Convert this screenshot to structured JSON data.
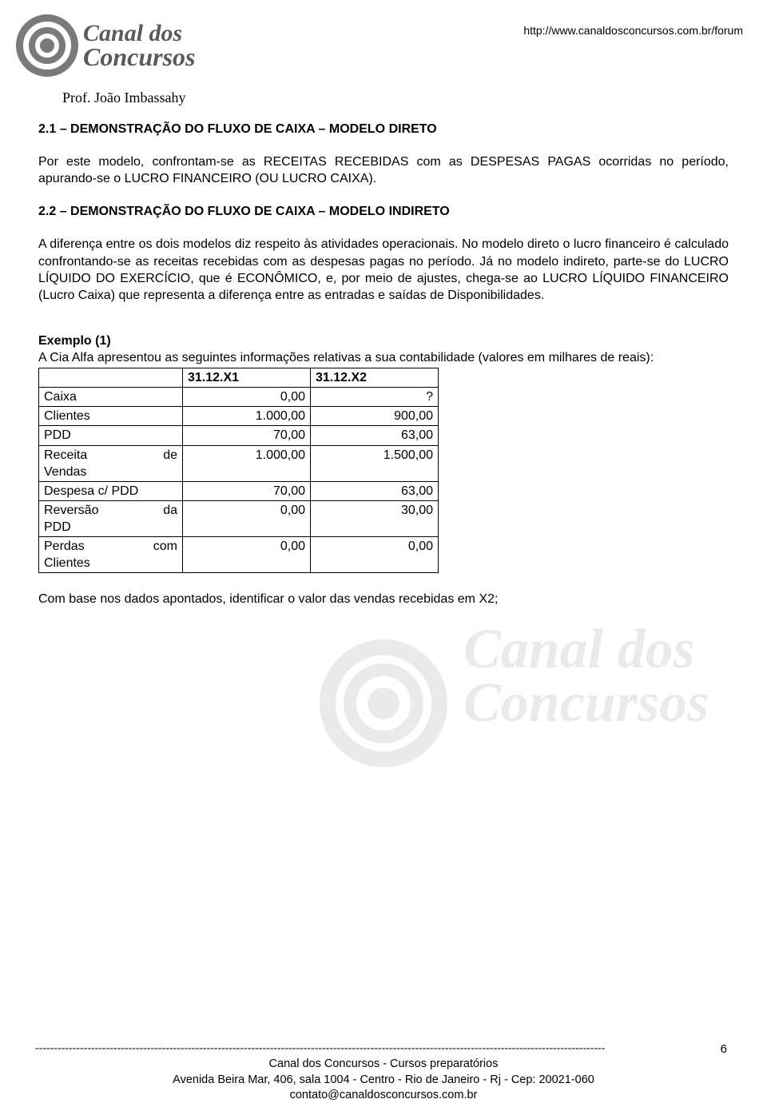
{
  "header": {
    "logo_line1": "Canal dos",
    "logo_line2": "Concursos",
    "url": "http://www.canaldosconcursos.com.br/forum"
  },
  "author": "Prof. João Imbassahy",
  "section1": {
    "heading": "2.1 – DEMONSTRAÇÃO DO FLUXO DE CAIXA – MODELO DIRETO",
    "para": "Por este modelo, confrontam-se as RECEITAS RECEBIDAS com as DESPESAS PAGAS ocorridas no período, apurando-se o LUCRO FINANCEIRO (OU LUCRO CAIXA)."
  },
  "section2": {
    "heading": "2.2 – DEMONSTRAÇÃO DO FLUXO DE CAIXA – MODELO INDIRETO",
    "para": "A diferença entre os dois modelos diz respeito às atividades operacionais. No modelo direto o lucro financeiro é calculado confrontando-se as receitas recebidas com as despesas pagas no período. Já no modelo indireto, parte-se do LUCRO LÍQUIDO  DO EXERCÍCIO, que é ECONÔMICO, e, por meio de ajustes, chega-se ao LUCRO LÍQUIDO FINANCEIRO (Lucro Caixa) que representa a diferença entre as entradas e saídas de Disponibilidades."
  },
  "example": {
    "title": "Exemplo (1)",
    "lead": "A Cia Alfa apresentou as seguintes informações relativas a sua contabilidade (valores em milhares de reais):",
    "note": "Com base nos dados apontados, identificar o valor das vendas recebidas em X2;"
  },
  "table": {
    "headers": [
      "",
      "31.12.X1",
      "31.12.X2"
    ],
    "rows": [
      {
        "label": "Caixa",
        "c1": "0,00",
        "c2": "?"
      },
      {
        "label": "Clientes",
        "c1": "1.000,00",
        "c2": "900,00"
      },
      {
        "label": "PDD",
        "c1": "70,00",
        "c2": "63,00"
      },
      {
        "label_a": "Receita",
        "label_b": "de",
        "label2": "Vendas",
        "c1": "1.000,00",
        "c2": "1.500,00"
      },
      {
        "label": "Despesa c/ PDD",
        "c1": "70,00",
        "c2": "63,00"
      },
      {
        "label_a": "Reversão",
        "label_b": "da",
        "label2": "PDD",
        "c1": "0,00",
        "c2": "30,00"
      },
      {
        "label_a": "Perdas",
        "label_b": "com",
        "label2": "Clientes",
        "c1": "0,00",
        "c2": "0,00"
      }
    ]
  },
  "watermark": {
    "line1": "Canal dos",
    "line2": "Concursos"
  },
  "footer": {
    "line1": "Canal dos Concursos - Cursos preparatórios",
    "line2": "Avenida Beira Mar, 406, sala 1004 - Centro - Rio de Janeiro - Rj - Cep: 20021-060",
    "line3": "contato@canaldosconcursos.com.br"
  },
  "page_number": "6"
}
